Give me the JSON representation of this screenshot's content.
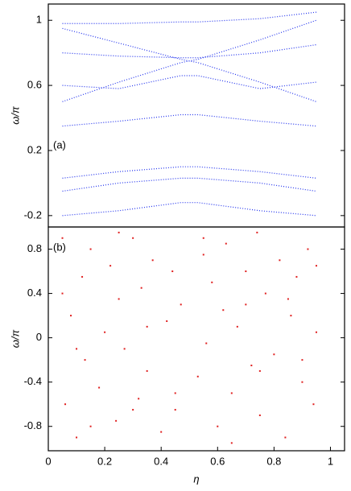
{
  "chart_data": [
    {
      "type": "line",
      "panel_label": "(a)",
      "ylabel": "ω/π",
      "color": "#2233ee",
      "xlim": [
        0,
        1.05
      ],
      "ylim": [
        -0.27,
        1.1
      ],
      "yticks": [
        -0.2,
        0.2,
        0.6,
        1
      ],
      "x": [
        0.05,
        0.25,
        0.47,
        0.53,
        0.75,
        0.95
      ],
      "series": [
        {
          "values": [
            0.98,
            0.98,
            0.99,
            0.99,
            1.01,
            1.05
          ]
        },
        {
          "values": [
            0.95,
            0.86,
            0.76,
            0.74,
            0.62,
            0.5
          ]
        },
        {
          "values": [
            0.5,
            0.62,
            0.74,
            0.76,
            0.88,
            1.0
          ]
        },
        {
          "values": [
            0.8,
            0.78,
            0.77,
            0.77,
            0.8,
            0.85
          ]
        },
        {
          "values": [
            0.6,
            0.58,
            0.66,
            0.66,
            0.58,
            0.62
          ]
        },
        {
          "values": [
            0.35,
            0.38,
            0.42,
            0.42,
            0.38,
            0.35
          ]
        },
        {
          "values": [
            0.03,
            0.07,
            0.1,
            0.1,
            0.07,
            0.03
          ]
        },
        {
          "values": [
            -0.05,
            0.0,
            0.03,
            0.03,
            0.0,
            -0.05
          ]
        },
        {
          "values": [
            -0.2,
            -0.17,
            -0.12,
            -0.12,
            -0.17,
            -0.2
          ]
        }
      ]
    },
    {
      "type": "scatter",
      "panel_label": "(b)",
      "ylabel": "ω/π",
      "xlabel": "η",
      "color": "#e02020",
      "xlim": [
        0,
        1.05
      ],
      "ylim": [
        -1.02,
        1.0
      ],
      "yticks": [
        -0.8,
        -0.4,
        0,
        0.4,
        0.8
      ],
      "xticks": [
        0,
        0.2,
        0.4,
        0.6,
        0.8,
        1
      ],
      "x": [
        0.05,
        0.06,
        0.08,
        0.1,
        0.12,
        0.13,
        0.15,
        0.18,
        0.2,
        0.22,
        0.24,
        0.25,
        0.27,
        0.3,
        0.32,
        0.33,
        0.35,
        0.37,
        0.4,
        0.42,
        0.44,
        0.45,
        0.47,
        0.53,
        0.55,
        0.56,
        0.58,
        0.6,
        0.62,
        0.63,
        0.65,
        0.67,
        0.7,
        0.72,
        0.74,
        0.75,
        0.77,
        0.8,
        0.82,
        0.84,
        0.86,
        0.88,
        0.9,
        0.92,
        0.94,
        0.95,
        0.05,
        0.15,
        0.25,
        0.35,
        0.45,
        0.55,
        0.65,
        0.75,
        0.85,
        0.95,
        0.1,
        0.3,
        0.7,
        0.9
      ],
      "y": [
        0.9,
        -0.6,
        0.2,
        -0.9,
        0.55,
        -0.2,
        0.8,
        -0.45,
        0.05,
        0.65,
        -0.75,
        0.35,
        -0.1,
        0.9,
        -0.55,
        0.45,
        -0.3,
        0.7,
        -0.85,
        0.15,
        0.6,
        -0.65,
        0.3,
        -0.35,
        0.75,
        -0.05,
        0.5,
        -0.8,
        0.25,
        0.85,
        -0.5,
        0.1,
        0.6,
        -0.25,
        0.95,
        -0.7,
        0.4,
        -0.15,
        0.7,
        -0.9,
        0.2,
        0.55,
        -0.4,
        0.8,
        -0.6,
        0.05,
        0.4,
        -0.8,
        0.95,
        0.1,
        -0.5,
        0.9,
        -0.95,
        -0.3,
        0.35,
        0.65,
        -0.1,
        -0.65,
        0.3,
        -0.2
      ]
    }
  ]
}
